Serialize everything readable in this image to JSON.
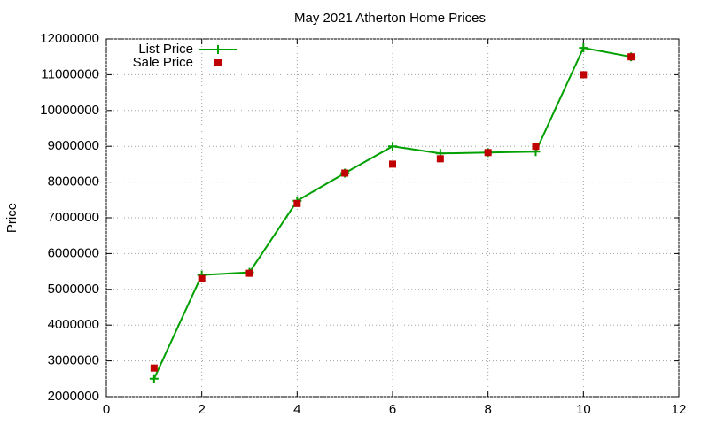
{
  "chart_data": {
    "type": "line",
    "title": "May 2021 Atherton Home Prices",
    "y_label": "Price",
    "x": [
      1,
      2,
      3,
      4,
      5,
      6,
      7,
      8,
      9,
      10,
      11
    ],
    "series": [
      {
        "name": "List Price",
        "color": "#00a000",
        "marker": "plus",
        "line": true,
        "values": [
          2500000,
          5400000,
          5475000,
          7475000,
          8250000,
          9000000,
          8800000,
          8825000,
          8850000,
          11750000,
          11500000
        ]
      },
      {
        "name": "Sale Price",
        "color": "#c00000",
        "marker": "square",
        "line": false,
        "values": [
          2800000,
          5300000,
          5450000,
          7400000,
          8250000,
          8500000,
          8650000,
          8825000,
          9000000,
          11000000,
          11500000
        ]
      }
    ],
    "xlim": [
      0,
      12
    ],
    "xticks": [
      0,
      2,
      4,
      6,
      8,
      10,
      12
    ],
    "ylim": [
      2000000,
      12000000
    ],
    "yticks": [
      2000000,
      3000000,
      4000000,
      5000000,
      6000000,
      7000000,
      8000000,
      9000000,
      10000000,
      11000000,
      12000000
    ],
    "grid": true,
    "legend": "top-left"
  }
}
